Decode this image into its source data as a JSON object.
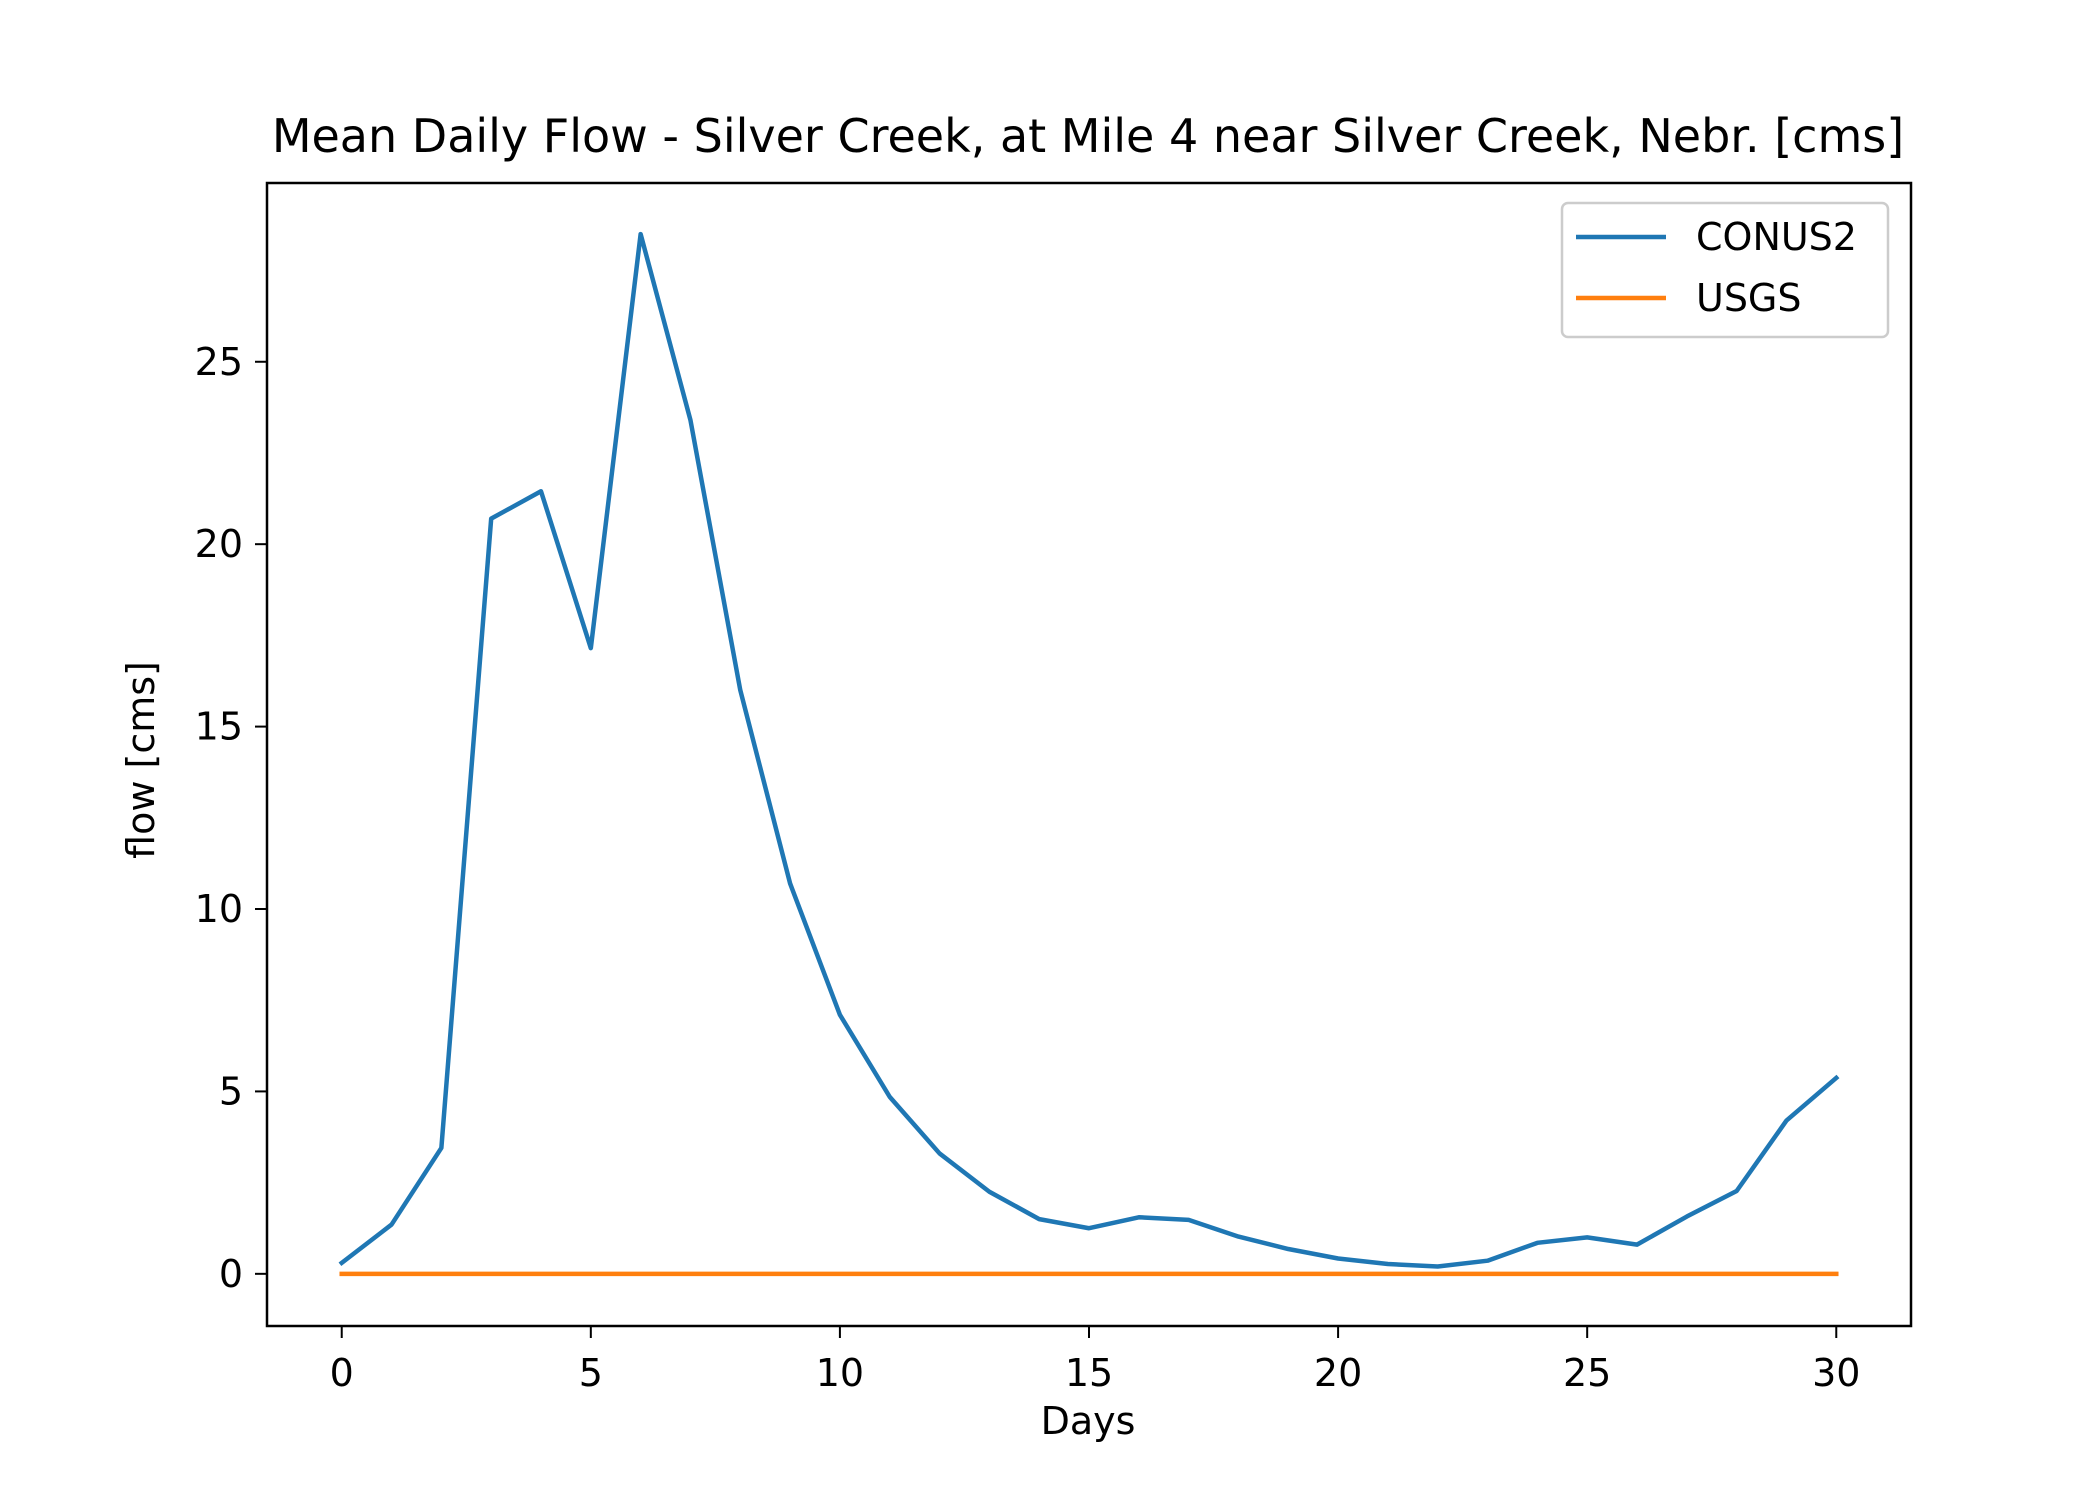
{
  "chart_data": {
    "type": "line",
    "title": "Mean Daily Flow - Silver Creek, at Mile 4 near Silver Creek, Nebr. [cms]",
    "xlabel": "Days",
    "ylabel": "flow [cms]",
    "xlim": [
      -1.5,
      31.5
    ],
    "ylim": [
      -1.43,
      29.9
    ],
    "xticks": [
      0,
      5,
      10,
      15,
      20,
      25,
      30
    ],
    "yticks": [
      0,
      5,
      10,
      15,
      20,
      25
    ],
    "grid": false,
    "legend_position": "top-right",
    "x": [
      0,
      1,
      2,
      3,
      4,
      5,
      6,
      7,
      8,
      9,
      10,
      11,
      12,
      13,
      14,
      15,
      16,
      17,
      18,
      19,
      20,
      21,
      22,
      23,
      24,
      25,
      26,
      27,
      28,
      29,
      30
    ],
    "series": [
      {
        "name": "CONUS2",
        "color": "#1f77b4",
        "values": [
          0.3,
          1.35,
          3.45,
          20.7,
          21.45,
          17.15,
          28.5,
          23.4,
          16.0,
          10.7,
          7.1,
          4.85,
          3.3,
          2.25,
          1.5,
          1.25,
          1.55,
          1.48,
          1.02,
          0.68,
          0.42,
          0.27,
          0.2,
          0.36,
          0.85,
          1.0,
          0.8,
          1.57,
          2.27,
          4.2,
          5.37
        ]
      },
      {
        "name": "USGS",
        "color": "#ff7f0e",
        "values": [
          0,
          0,
          0,
          0,
          0,
          0,
          0,
          0,
          0,
          0,
          0,
          0,
          0,
          0,
          0,
          0,
          0,
          0,
          0,
          0,
          0,
          0,
          0,
          0,
          0,
          0,
          0,
          0,
          0,
          0,
          0
        ]
      }
    ]
  }
}
